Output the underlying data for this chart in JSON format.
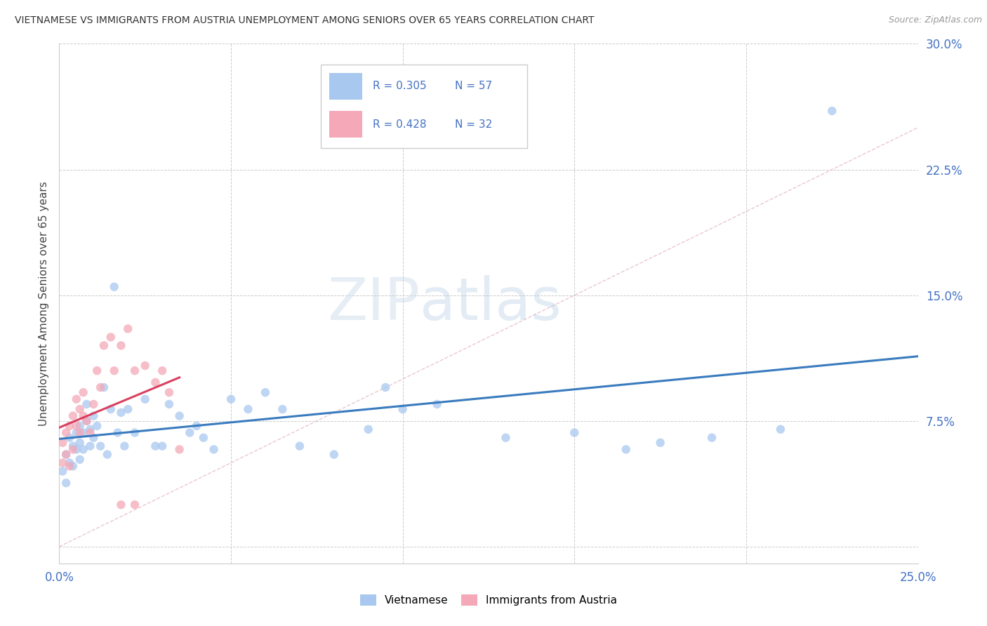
{
  "title": "VIETNAMESE VS IMMIGRANTS FROM AUSTRIA UNEMPLOYMENT AMONG SENIORS OVER 65 YEARS CORRELATION CHART",
  "source": "Source: ZipAtlas.com",
  "ylabel": "Unemployment Among Seniors over 65 years",
  "xlim": [
    0,
    0.25
  ],
  "ylim": [
    -0.01,
    0.3
  ],
  "background_color": "#ffffff",
  "grid_color": "#cccccc",
  "watermark_zip": "ZIP",
  "watermark_atlas": "atlas",
  "color_vietnamese": "#a8c8f0",
  "color_austria": "#f4a8b8",
  "color_line_vietnamese": "#3a7bbf",
  "color_line_austria": "#d94060",
  "color_diag": "#d0b0b8",
  "scatter_size": 80,
  "viet_x": [
    0.001,
    0.002,
    0.002,
    0.003,
    0.003,
    0.004,
    0.004,
    0.005,
    0.005,
    0.006,
    0.006,
    0.006,
    0.007,
    0.007,
    0.008,
    0.008,
    0.009,
    0.009,
    0.01,
    0.01,
    0.011,
    0.012,
    0.013,
    0.014,
    0.015,
    0.016,
    0.017,
    0.018,
    0.019,
    0.02,
    0.022,
    0.025,
    0.028,
    0.03,
    0.032,
    0.035,
    0.038,
    0.04,
    0.042,
    0.045,
    0.05,
    0.055,
    0.06,
    0.065,
    0.07,
    0.08,
    0.09,
    0.095,
    0.1,
    0.11,
    0.13,
    0.15,
    0.165,
    0.175,
    0.19,
    0.21,
    0.225
  ],
  "viet_y": [
    0.045,
    0.038,
    0.055,
    0.05,
    0.065,
    0.06,
    0.048,
    0.058,
    0.068,
    0.052,
    0.062,
    0.072,
    0.058,
    0.068,
    0.075,
    0.085,
    0.06,
    0.07,
    0.065,
    0.078,
    0.072,
    0.06,
    0.095,
    0.055,
    0.082,
    0.155,
    0.068,
    0.08,
    0.06,
    0.082,
    0.068,
    0.088,
    0.06,
    0.06,
    0.085,
    0.078,
    0.068,
    0.072,
    0.065,
    0.058,
    0.088,
    0.082,
    0.092,
    0.082,
    0.06,
    0.055,
    0.07,
    0.095,
    0.082,
    0.085,
    0.065,
    0.068,
    0.058,
    0.062,
    0.065,
    0.07,
    0.26
  ],
  "austria_x": [
    0.001,
    0.001,
    0.002,
    0.002,
    0.003,
    0.003,
    0.004,
    0.004,
    0.005,
    0.005,
    0.006,
    0.006,
    0.007,
    0.007,
    0.008,
    0.009,
    0.01,
    0.011,
    0.012,
    0.013,
    0.015,
    0.016,
    0.018,
    0.02,
    0.022,
    0.025,
    0.028,
    0.03,
    0.032,
    0.035,
    0.018,
    0.022
  ],
  "austria_y": [
    0.05,
    0.062,
    0.055,
    0.068,
    0.048,
    0.072,
    0.078,
    0.058,
    0.088,
    0.072,
    0.068,
    0.082,
    0.092,
    0.078,
    0.075,
    0.068,
    0.085,
    0.105,
    0.095,
    0.12,
    0.125,
    0.105,
    0.12,
    0.13,
    0.105,
    0.108,
    0.098,
    0.105,
    0.092,
    0.058,
    0.025,
    0.025
  ]
}
